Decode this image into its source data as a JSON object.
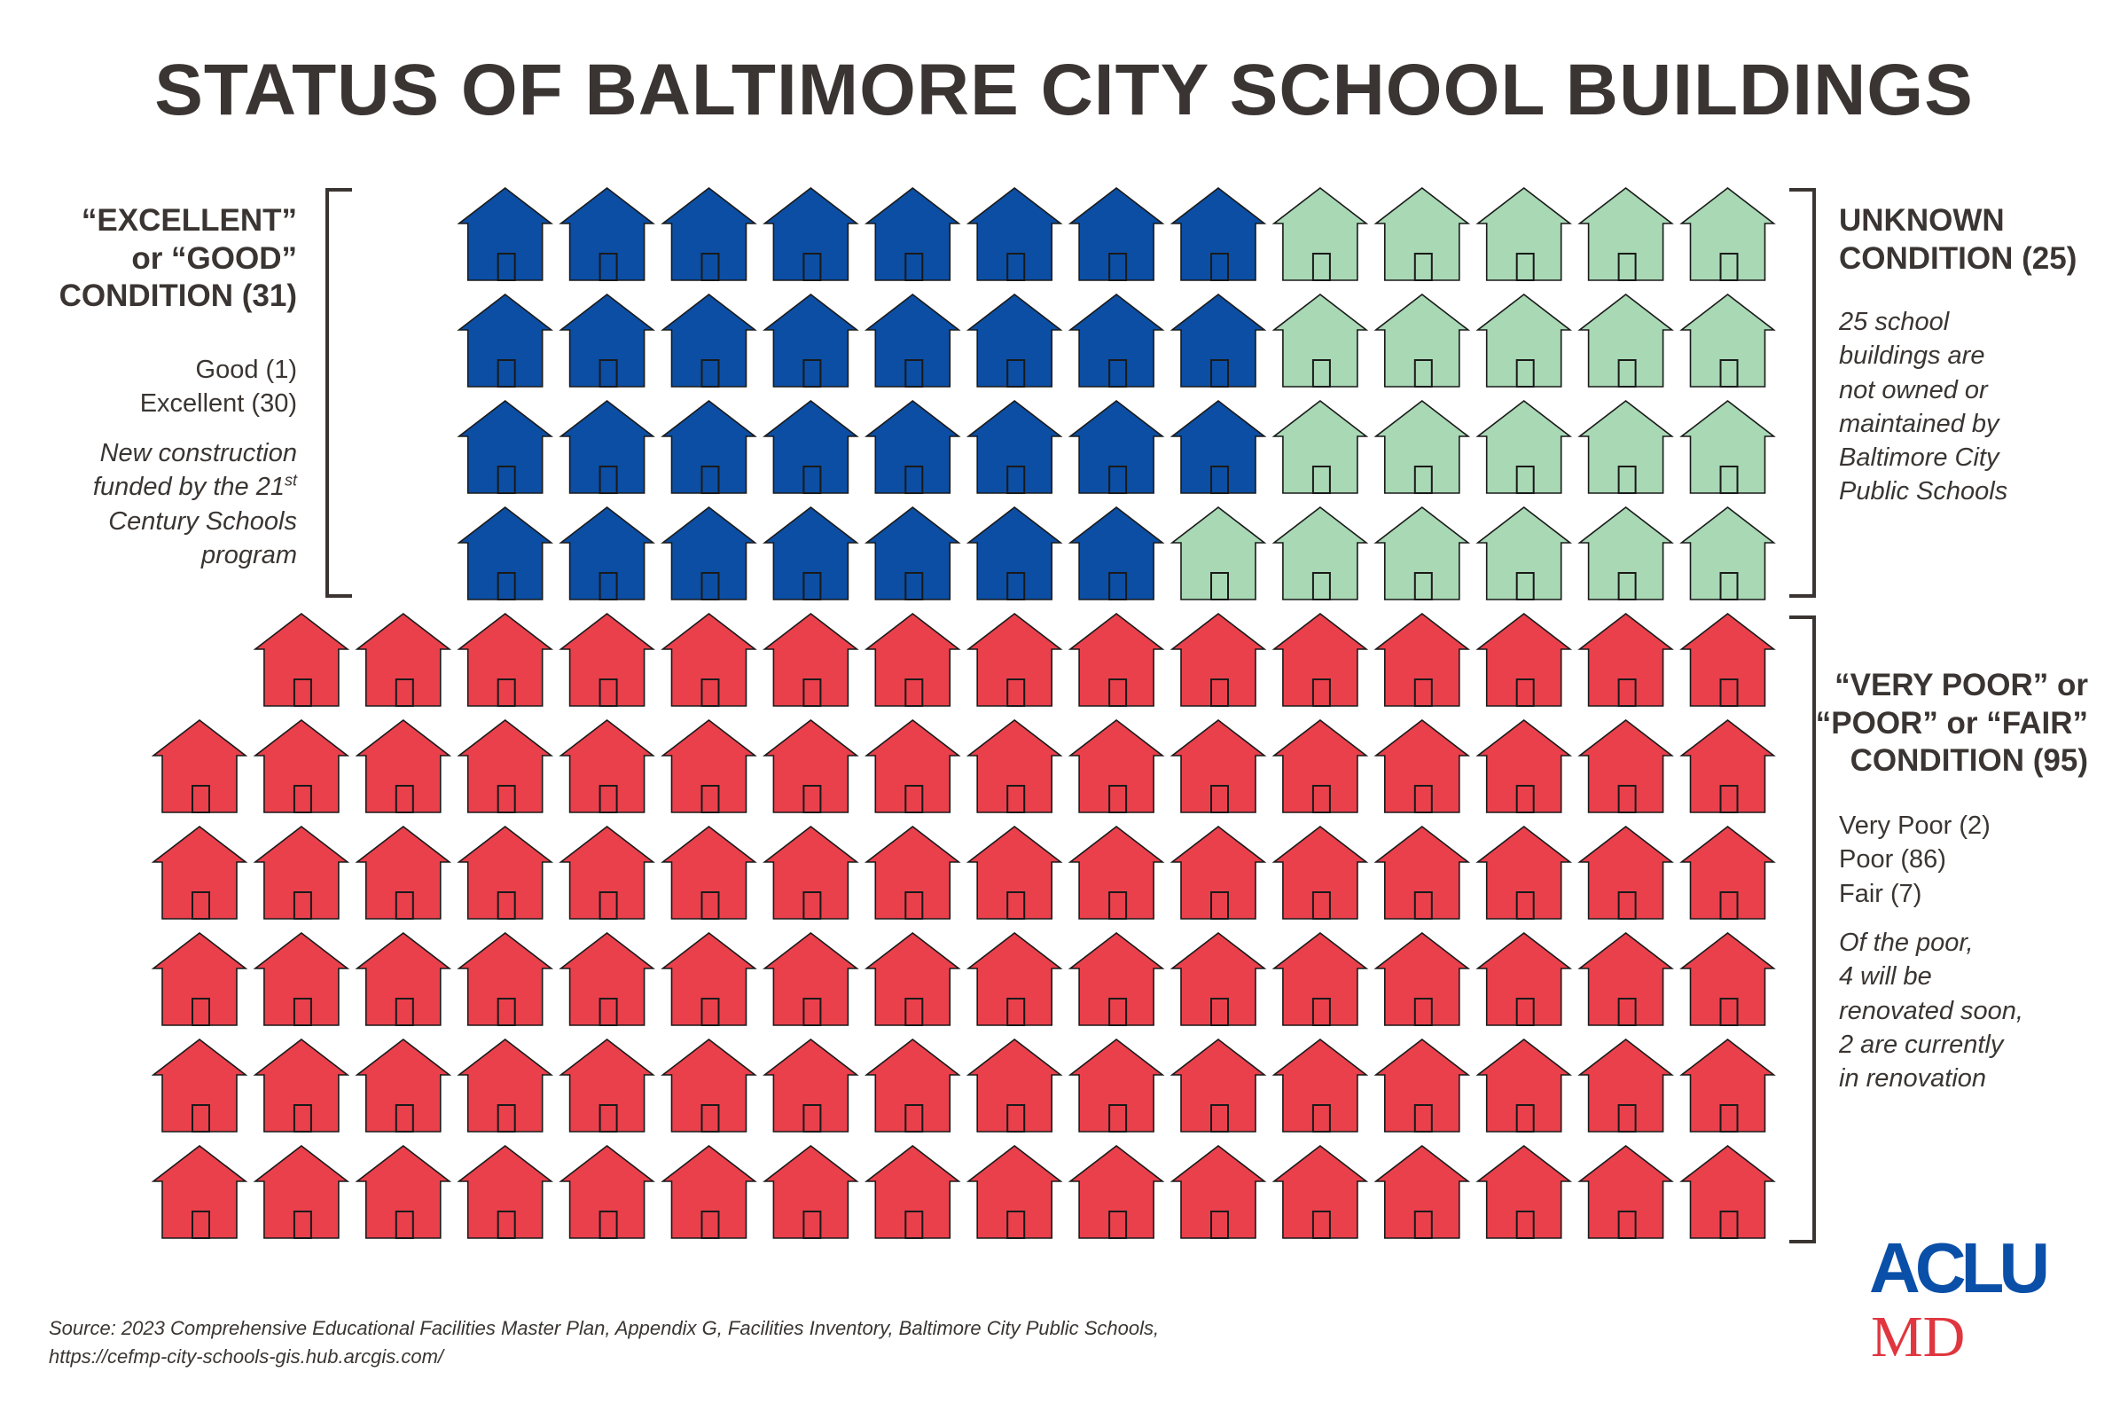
{
  "title": "STATUS OF BALTIMORE CITY SCHOOL BUILDINGS",
  "chart_data": {
    "type": "pictograph",
    "unit": "school building",
    "total": 151,
    "series": [
      {
        "name": "Excellent or Good",
        "count": 31,
        "color": "#0b4ea4"
      },
      {
        "name": "Unknown",
        "count": 25,
        "color": "#a8d8b4"
      },
      {
        "name": "Very Poor, Poor or Fair",
        "count": 95,
        "color": "#e9404c"
      }
    ],
    "breakdown": {
      "good": 1,
      "excellent": 30,
      "very_poor": 2,
      "poor": 86,
      "fair": 7,
      "poor_renovated_soon": 4,
      "poor_in_renovation": 2
    }
  },
  "left": {
    "heading_lines": [
      "“EXCELLENT”",
      "or “GOOD”",
      "CONDITION (31)"
    ],
    "items": [
      "Good (1)",
      "Excellent (30)"
    ],
    "note_line1": "New construction",
    "note_line2_pre": "funded by the 21",
    "note_line2_sup": "st",
    "note_line3": "Century Schools",
    "note_line4": "program"
  },
  "right_top": {
    "heading_lines": [
      "UNKNOWN",
      "CONDITION (25)"
    ],
    "note_lines": [
      "25 school",
      "buildings are",
      "not owned or",
      "maintained by",
      "Baltimore City",
      "Public Schools"
    ]
  },
  "right_bottom": {
    "heading_lines": [
      "“VERY POOR” or",
      "“POOR” or “FAIR”",
      "CONDITION (95)"
    ],
    "items": [
      "Very Poor (2)",
      "Poor (86)",
      "Fair (7)"
    ],
    "note_lines": [
      "Of the poor,",
      "4 will be",
      "renovated soon,",
      "2 are currently",
      "in renovation"
    ]
  },
  "source": {
    "line1": "Source: 2023 Comprehensive Educational Facilities Master Plan, Appendix G, Facilities Inventory, Baltimore City Public Schools,",
    "line2": "https://cefmp-city-schools-gis.hub.arcgis.com/"
  },
  "logo": {
    "top": "ACLU",
    "bottom": "MD"
  }
}
